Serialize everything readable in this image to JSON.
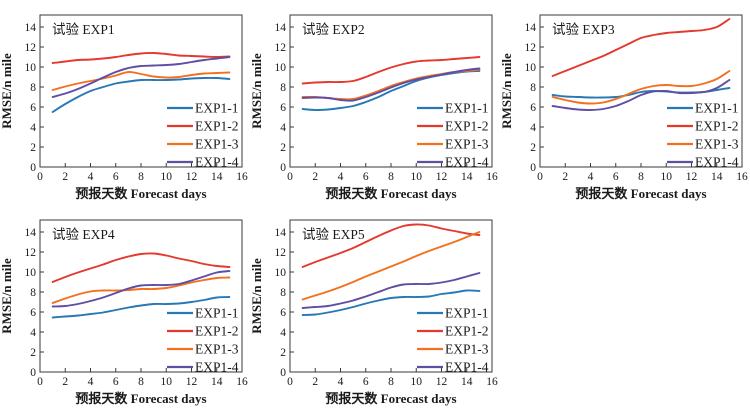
{
  "page": {
    "background": "#ffffff"
  },
  "series_colors": {
    "EXP1-1": "#2878b5",
    "EXP1-2": "#e4392e",
    "EXP1-3": "#f3701e",
    "EXP1-4": "#5f4ea3"
  },
  "legend_labels": [
    "EXP1-1",
    "EXP1-2",
    "EXP1-3",
    "EXP1-4"
  ],
  "chart_data": [
    {
      "type": "line",
      "title": "试验 EXP1",
      "xlabel": "预报天数 Forecast days",
      "ylabel": "RMSE/n mile",
      "xlim": [
        0,
        16
      ],
      "ylim": [
        0,
        15.2
      ],
      "xticks": [
        0,
        2,
        4,
        6,
        8,
        10,
        12,
        14,
        16
      ],
      "yticks": [
        0,
        2,
        4,
        6,
        8,
        10,
        12,
        14
      ],
      "grid": false,
      "legend_position": "bottom-right",
      "x": [
        1,
        2,
        3,
        4,
        5,
        6,
        7,
        8,
        9,
        10,
        11,
        12,
        13,
        14,
        15
      ],
      "series": [
        {
          "name": "EXP1-1",
          "color": "#2878b5",
          "values": [
            5.5,
            6.3,
            7.0,
            7.6,
            8.0,
            8.35,
            8.55,
            8.7,
            8.7,
            8.7,
            8.75,
            8.85,
            8.9,
            8.9,
            8.8
          ]
        },
        {
          "name": "EXP1-2",
          "color": "#e4392e",
          "values": [
            10.4,
            10.55,
            10.7,
            10.75,
            10.85,
            11.0,
            11.2,
            11.35,
            11.4,
            11.3,
            11.15,
            11.1,
            11.05,
            11.0,
            11.05
          ]
        },
        {
          "name": "EXP1-3",
          "color": "#f3701e",
          "values": [
            7.7,
            8.05,
            8.35,
            8.6,
            8.85,
            9.15,
            9.5,
            9.3,
            9.05,
            8.95,
            9.0,
            9.2,
            9.35,
            9.4,
            9.45
          ]
        },
        {
          "name": "EXP1-4",
          "color": "#5f4ea3",
          "values": [
            7.0,
            7.35,
            7.8,
            8.35,
            8.95,
            9.5,
            9.9,
            10.1,
            10.15,
            10.2,
            10.3,
            10.5,
            10.7,
            10.85,
            11.0
          ]
        }
      ]
    },
    {
      "type": "line",
      "title": "试验 EXP2",
      "xlabel": "预报天数 Forecast days",
      "ylabel": "RMSE/n mile",
      "xlim": [
        0,
        16
      ],
      "ylim": [
        0,
        15.2
      ],
      "xticks": [
        0,
        2,
        4,
        6,
        8,
        10,
        12,
        14,
        16
      ],
      "yticks": [
        0,
        2,
        4,
        6,
        8,
        10,
        12,
        14
      ],
      "grid": false,
      "legend_position": "bottom-right",
      "x": [
        1,
        2,
        3,
        4,
        5,
        6,
        7,
        8,
        9,
        10,
        11,
        12,
        13,
        14,
        15
      ],
      "series": [
        {
          "name": "EXP1-1",
          "color": "#2878b5",
          "values": [
            5.8,
            5.7,
            5.75,
            5.9,
            6.1,
            6.5,
            7.0,
            7.6,
            8.1,
            8.6,
            8.95,
            9.2,
            9.4,
            9.55,
            9.6
          ]
        },
        {
          "name": "EXP1-2",
          "color": "#e4392e",
          "values": [
            8.35,
            8.45,
            8.5,
            8.5,
            8.6,
            9.0,
            9.5,
            9.95,
            10.3,
            10.55,
            10.65,
            10.7,
            10.8,
            10.9,
            11.0
          ]
        },
        {
          "name": "EXP1-3",
          "color": "#f3701e",
          "values": [
            7.0,
            7.0,
            6.9,
            6.8,
            6.8,
            7.15,
            7.6,
            8.1,
            8.5,
            8.85,
            9.1,
            9.3,
            9.5,
            9.6,
            9.75
          ]
        },
        {
          "name": "EXP1-4",
          "color": "#5f4ea3",
          "values": [
            6.9,
            6.95,
            6.9,
            6.7,
            6.65,
            7.0,
            7.45,
            7.95,
            8.4,
            8.75,
            9.0,
            9.25,
            9.5,
            9.7,
            9.85
          ]
        }
      ]
    },
    {
      "type": "line",
      "title": "试验 EXP3",
      "xlabel": "预报天数 Forecast days",
      "ylabel": "RMSE/n mile",
      "xlim": [
        0,
        16
      ],
      "ylim": [
        0,
        15.2
      ],
      "xticks": [
        0,
        2,
        4,
        6,
        8,
        10,
        12,
        14,
        16
      ],
      "yticks": [
        0,
        2,
        4,
        6,
        8,
        10,
        12,
        14
      ],
      "grid": false,
      "legend_position": "bottom-right",
      "x": [
        1,
        2,
        3,
        4,
        5,
        6,
        7,
        8,
        9,
        10,
        11,
        12,
        13,
        14,
        15
      ],
      "series": [
        {
          "name": "EXP1-1",
          "color": "#2878b5",
          "values": [
            7.2,
            7.05,
            7.0,
            6.95,
            6.95,
            7.0,
            7.2,
            7.5,
            7.6,
            7.55,
            7.45,
            7.45,
            7.5,
            7.7,
            7.9
          ]
        },
        {
          "name": "EXP1-2",
          "color": "#e4392e",
          "values": [
            9.1,
            9.6,
            10.1,
            10.6,
            11.1,
            11.7,
            12.3,
            12.9,
            13.2,
            13.4,
            13.5,
            13.6,
            13.7,
            14.0,
            14.8
          ]
        },
        {
          "name": "EXP1-3",
          "color": "#f3701e",
          "values": [
            7.0,
            6.7,
            6.45,
            6.35,
            6.45,
            6.8,
            7.3,
            7.8,
            8.1,
            8.2,
            8.1,
            8.1,
            8.35,
            8.8,
            9.6
          ]
        },
        {
          "name": "EXP1-4",
          "color": "#5f4ea3",
          "values": [
            6.1,
            5.9,
            5.75,
            5.7,
            5.8,
            6.1,
            6.6,
            7.2,
            7.55,
            7.6,
            7.4,
            7.4,
            7.5,
            7.9,
            8.7
          ]
        }
      ]
    },
    {
      "type": "line",
      "title": "试验 EXP4",
      "xlabel": "预报天数 Forecast days",
      "ylabel": "RMSE/n mile",
      "xlim": [
        0,
        16
      ],
      "ylim": [
        0,
        15.2
      ],
      "xticks": [
        0,
        2,
        4,
        6,
        8,
        10,
        12,
        14,
        16
      ],
      "yticks": [
        0,
        2,
        4,
        6,
        8,
        10,
        12,
        14
      ],
      "grid": false,
      "legend_position": "bottom-right",
      "x": [
        1,
        2,
        3,
        4,
        5,
        6,
        7,
        8,
        9,
        10,
        11,
        12,
        13,
        14,
        15
      ],
      "series": [
        {
          "name": "EXP1-1",
          "color": "#2878b5",
          "values": [
            5.45,
            5.55,
            5.65,
            5.8,
            5.95,
            6.2,
            6.45,
            6.65,
            6.8,
            6.8,
            6.85,
            7.0,
            7.2,
            7.45,
            7.5
          ]
        },
        {
          "name": "EXP1-2",
          "color": "#e4392e",
          "values": [
            9.0,
            9.5,
            9.95,
            10.35,
            10.75,
            11.2,
            11.55,
            11.8,
            11.85,
            11.65,
            11.35,
            11.1,
            10.8,
            10.6,
            10.5
          ]
        },
        {
          "name": "EXP1-3",
          "color": "#f3701e",
          "values": [
            6.9,
            7.35,
            7.75,
            8.05,
            8.15,
            8.15,
            8.2,
            8.3,
            8.3,
            8.4,
            8.65,
            8.95,
            9.2,
            9.4,
            9.45
          ]
        },
        {
          "name": "EXP1-4",
          "color": "#5f4ea3",
          "values": [
            6.55,
            6.6,
            6.8,
            7.1,
            7.45,
            7.9,
            8.35,
            8.65,
            8.7,
            8.7,
            8.8,
            9.15,
            9.55,
            9.95,
            10.1
          ]
        }
      ]
    },
    {
      "type": "line",
      "title": "试验 EXP5",
      "xlabel": "预报天数 Forecast days",
      "ylabel": "RMSE/n mile",
      "xlim": [
        0,
        16
      ],
      "ylim": [
        0,
        15.2
      ],
      "xticks": [
        0,
        2,
        4,
        6,
        8,
        10,
        12,
        14,
        16
      ],
      "yticks": [
        0,
        2,
        4,
        6,
        8,
        10,
        12,
        14
      ],
      "grid": false,
      "legend_position": "bottom-right",
      "x": [
        1,
        2,
        3,
        4,
        5,
        6,
        7,
        8,
        9,
        10,
        11,
        12,
        13,
        14,
        15
      ],
      "series": [
        {
          "name": "EXP1-1",
          "color": "#2878b5",
          "values": [
            5.7,
            5.75,
            5.95,
            6.2,
            6.5,
            6.85,
            7.15,
            7.4,
            7.5,
            7.5,
            7.55,
            7.8,
            7.95,
            8.15,
            8.1
          ]
        },
        {
          "name": "EXP1-2",
          "color": "#e4392e",
          "values": [
            10.5,
            11.0,
            11.45,
            11.9,
            12.4,
            13.0,
            13.6,
            14.15,
            14.6,
            14.75,
            14.65,
            14.35,
            14.1,
            13.85,
            13.7
          ]
        },
        {
          "name": "EXP1-3",
          "color": "#f3701e",
          "values": [
            7.25,
            7.65,
            8.05,
            8.5,
            9.0,
            9.55,
            10.05,
            10.55,
            11.05,
            11.6,
            12.1,
            12.55,
            13.0,
            13.5,
            14.0
          ]
        },
        {
          "name": "EXP1-4",
          "color": "#5f4ea3",
          "values": [
            6.4,
            6.5,
            6.6,
            6.85,
            7.15,
            7.55,
            8.0,
            8.45,
            8.75,
            8.8,
            8.8,
            8.95,
            9.2,
            9.55,
            9.9
          ]
        }
      ]
    }
  ]
}
